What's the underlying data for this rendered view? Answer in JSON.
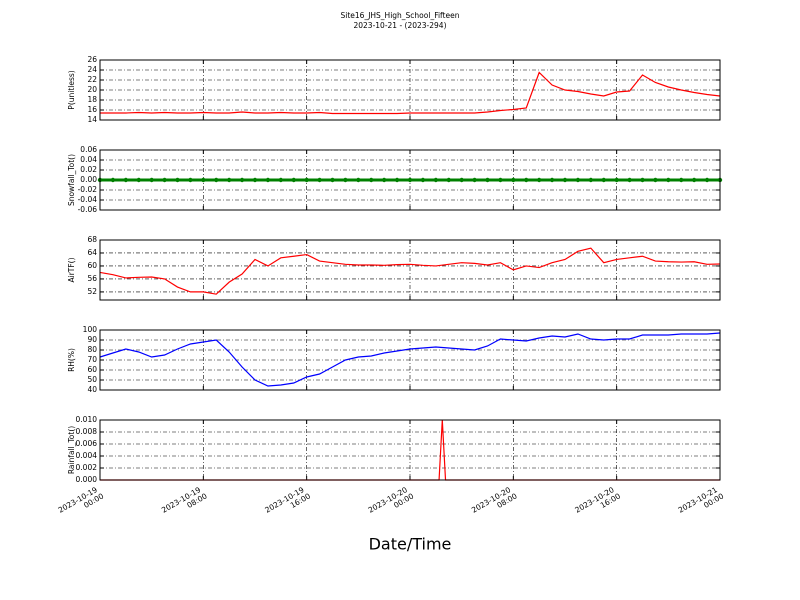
{
  "title": "Site16_JHS_High_School_Fifteen",
  "subtitle": "2023-10-21 - (2023-294)",
  "xlabel": "Date/Time",
  "chart_data": [
    {
      "type": "line",
      "ylabel": "P(unitless)",
      "color": "#ff0000",
      "grid": true,
      "xlim": [
        "2023-10-19 00:00",
        "2023-10-21 00:00"
      ],
      "xticks": [
        "2023-10-19 00:00",
        "2023-10-19 08:00",
        "2023-10-19 16:00",
        "2023-10-20 00:00",
        "2023-10-20 08:00",
        "2023-10-20 16:00",
        "2023-10-21 00:00"
      ],
      "ylim": [
        14,
        26
      ],
      "yticks": [
        14,
        16,
        18,
        20,
        22,
        24,
        26
      ],
      "x": [
        "2023-10-19 00:00",
        "2023-10-19 01:00",
        "2023-10-19 02:00",
        "2023-10-19 03:00",
        "2023-10-19 04:00",
        "2023-10-19 05:00",
        "2023-10-19 06:00",
        "2023-10-19 07:00",
        "2023-10-19 08:00",
        "2023-10-19 09:00",
        "2023-10-19 10:00",
        "2023-10-19 11:00",
        "2023-10-19 12:00",
        "2023-10-19 13:00",
        "2023-10-19 14:00",
        "2023-10-19 15:00",
        "2023-10-19 16:00",
        "2023-10-19 17:00",
        "2023-10-19 18:00",
        "2023-10-19 19:00",
        "2023-10-19 20:00",
        "2023-10-19 21:00",
        "2023-10-19 22:00",
        "2023-10-19 23:00",
        "2023-10-20 00:00",
        "2023-10-20 01:00",
        "2023-10-20 02:00",
        "2023-10-20 03:00",
        "2023-10-20 04:00",
        "2023-10-20 05:00",
        "2023-10-20 06:00",
        "2023-10-20 07:00",
        "2023-10-20 08:00",
        "2023-10-20 09:00",
        "2023-10-20 10:00",
        "2023-10-20 11:00",
        "2023-10-20 12:00",
        "2023-10-20 13:00",
        "2023-10-20 14:00",
        "2023-10-20 15:00",
        "2023-10-20 16:00",
        "2023-10-20 17:00",
        "2023-10-20 18:00",
        "2023-10-20 19:00",
        "2023-10-20 20:00",
        "2023-10-20 21:00",
        "2023-10-20 22:00",
        "2023-10-20 23:00",
        "2023-10-21 00:00"
      ],
      "values": [
        15.4,
        15.4,
        15.4,
        15.5,
        15.4,
        15.5,
        15.4,
        15.4,
        15.5,
        15.4,
        15.4,
        15.6,
        15.4,
        15.4,
        15.5,
        15.4,
        15.4,
        15.5,
        15.3,
        15.3,
        15.3,
        15.3,
        15.3,
        15.3,
        15.4,
        15.4,
        15.4,
        15.4,
        15.4,
        15.4,
        15.6,
        15.9,
        16.1,
        16.4,
        23.5,
        21,
        20,
        19.7,
        19.2,
        18.8,
        19.6,
        19.8,
        23,
        21.5,
        20.6,
        20,
        19.5,
        19.1,
        18.8
      ]
    },
    {
      "type": "line",
      "ylabel": "Snowfall_Tot()",
      "color": "#008000",
      "grid": true,
      "marker": "o",
      "xlim": [
        "2023-10-19 00:00",
        "2023-10-21 00:00"
      ],
      "xticks": [
        "2023-10-19 00:00",
        "2023-10-19 08:00",
        "2023-10-19 16:00",
        "2023-10-20 00:00",
        "2023-10-20 08:00",
        "2023-10-20 16:00",
        "2023-10-21 00:00"
      ],
      "ylim": [
        -0.06,
        0.06
      ],
      "yticks": [
        -0.06,
        -0.04,
        -0.02,
        {
          "value": 0,
          "label": "0.00"
        },
        0.02,
        0.04,
        0.06
      ],
      "x": [
        "2023-10-19 00:00",
        "2023-10-19 01:00",
        "2023-10-19 02:00",
        "2023-10-19 03:00",
        "2023-10-19 04:00",
        "2023-10-19 05:00",
        "2023-10-19 06:00",
        "2023-10-19 07:00",
        "2023-10-19 08:00",
        "2023-10-19 09:00",
        "2023-10-19 10:00",
        "2023-10-19 11:00",
        "2023-10-19 12:00",
        "2023-10-19 13:00",
        "2023-10-19 14:00",
        "2023-10-19 15:00",
        "2023-10-19 16:00",
        "2023-10-19 17:00",
        "2023-10-19 18:00",
        "2023-10-19 19:00",
        "2023-10-19 20:00",
        "2023-10-19 21:00",
        "2023-10-19 22:00",
        "2023-10-19 23:00",
        "2023-10-20 00:00",
        "2023-10-20 01:00",
        "2023-10-20 02:00",
        "2023-10-20 03:00",
        "2023-10-20 04:00",
        "2023-10-20 05:00",
        "2023-10-20 06:00",
        "2023-10-20 07:00",
        "2023-10-20 08:00",
        "2023-10-20 09:00",
        "2023-10-20 10:00",
        "2023-10-20 11:00",
        "2023-10-20 12:00",
        "2023-10-20 13:00",
        "2023-10-20 14:00",
        "2023-10-20 15:00",
        "2023-10-20 16:00",
        "2023-10-20 17:00",
        "2023-10-20 18:00",
        "2023-10-20 19:00",
        "2023-10-20 20:00",
        "2023-10-20 21:00",
        "2023-10-20 22:00",
        "2023-10-20 23:00",
        "2023-10-21 00:00"
      ],
      "values": [
        0,
        0,
        0,
        0,
        0,
        0,
        0,
        0,
        0,
        0,
        0,
        0,
        0,
        0,
        0,
        0,
        0,
        0,
        0,
        0,
        0,
        0,
        0,
        0,
        0,
        0,
        0,
        0,
        0,
        0,
        0,
        0,
        0,
        0,
        0,
        0,
        0,
        0,
        0,
        0,
        0,
        0,
        0,
        0,
        0,
        0,
        0,
        0,
        0
      ]
    },
    {
      "type": "line",
      "ylabel": "AirTF()",
      "color": "#ff0000",
      "grid": true,
      "xlim": [
        "2023-10-19 00:00",
        "2023-10-21 00:00"
      ],
      "xticks": [
        "2023-10-19 00:00",
        "2023-10-19 08:00",
        "2023-10-19 16:00",
        "2023-10-20 00:00",
        "2023-10-20 08:00",
        "2023-10-20 16:00",
        "2023-10-21 00:00"
      ],
      "ylim": [
        49.5,
        68
      ],
      "yticks": [
        52,
        56,
        60,
        64,
        68
      ],
      "x": [
        "2023-10-19 00:00",
        "2023-10-19 01:00",
        "2023-10-19 02:00",
        "2023-10-19 03:00",
        "2023-10-19 04:00",
        "2023-10-19 05:00",
        "2023-10-19 06:00",
        "2023-10-19 07:00",
        "2023-10-19 08:00",
        "2023-10-19 09:00",
        "2023-10-19 10:00",
        "2023-10-19 11:00",
        "2023-10-19 12:00",
        "2023-10-19 13:00",
        "2023-10-19 14:00",
        "2023-10-19 15:00",
        "2023-10-19 16:00",
        "2023-10-19 17:00",
        "2023-10-19 18:00",
        "2023-10-19 19:00",
        "2023-10-19 20:00",
        "2023-10-19 21:00",
        "2023-10-19 22:00",
        "2023-10-19 23:00",
        "2023-10-20 00:00",
        "2023-10-20 01:00",
        "2023-10-20 02:00",
        "2023-10-20 03:00",
        "2023-10-20 04:00",
        "2023-10-20 05:00",
        "2023-10-20 06:00",
        "2023-10-20 07:00",
        "2023-10-20 08:00",
        "2023-10-20 09:00",
        "2023-10-20 10:00",
        "2023-10-20 11:00",
        "2023-10-20 12:00",
        "2023-10-20 13:00",
        "2023-10-20 14:00",
        "2023-10-20 15:00",
        "2023-10-20 16:00",
        "2023-10-20 17:00",
        "2023-10-20 18:00",
        "2023-10-20 19:00",
        "2023-10-20 20:00",
        "2023-10-20 21:00",
        "2023-10-20 22:00",
        "2023-10-20 23:00",
        "2023-10-21 00:00"
      ],
      "values": [
        58,
        57.3,
        56.3,
        56.5,
        56.6,
        56,
        53.5,
        52,
        52,
        51.3,
        55,
        57.5,
        62,
        60,
        62.5,
        63,
        63.5,
        61.5,
        61,
        60.5,
        60.3,
        60.3,
        60.2,
        60.4,
        60.5,
        60.2,
        60,
        60.5,
        61,
        60.8,
        60.3,
        61,
        58.8,
        60,
        59.5,
        61,
        62,
        64.5,
        65.5,
        61,
        62,
        62.5,
        63,
        61.5,
        61.3,
        61.2,
        61.3,
        60.5,
        60.6
      ]
    },
    {
      "type": "line",
      "ylabel": "RH(%)",
      "color": "#0000ff",
      "grid": true,
      "xlim": [
        "2023-10-19 00:00",
        "2023-10-21 00:00"
      ],
      "xticks": [
        "2023-10-19 00:00",
        "2023-10-19 08:00",
        "2023-10-19 16:00",
        "2023-10-20 00:00",
        "2023-10-20 08:00",
        "2023-10-20 16:00",
        "2023-10-21 00:00"
      ],
      "ylim": [
        40,
        100
      ],
      "yticks": [
        40,
        50,
        60,
        70,
        80,
        90,
        100
      ],
      "x": [
        "2023-10-19 00:00",
        "2023-10-19 01:00",
        "2023-10-19 02:00",
        "2023-10-19 03:00",
        "2023-10-19 04:00",
        "2023-10-19 05:00",
        "2023-10-19 06:00",
        "2023-10-19 07:00",
        "2023-10-19 08:00",
        "2023-10-19 09:00",
        "2023-10-19 10:00",
        "2023-10-19 11:00",
        "2023-10-19 12:00",
        "2023-10-19 13:00",
        "2023-10-19 14:00",
        "2023-10-19 15:00",
        "2023-10-19 16:00",
        "2023-10-19 17:00",
        "2023-10-19 18:00",
        "2023-10-19 19:00",
        "2023-10-19 20:00",
        "2023-10-19 21:00",
        "2023-10-19 22:00",
        "2023-10-19 23:00",
        "2023-10-20 00:00",
        "2023-10-20 01:00",
        "2023-10-20 02:00",
        "2023-10-20 03:00",
        "2023-10-20 04:00",
        "2023-10-20 05:00",
        "2023-10-20 06:00",
        "2023-10-20 07:00",
        "2023-10-20 08:00",
        "2023-10-20 09:00",
        "2023-10-20 10:00",
        "2023-10-20 11:00",
        "2023-10-20 12:00",
        "2023-10-20 13:00",
        "2023-10-20 14:00",
        "2023-10-20 15:00",
        "2023-10-20 16:00",
        "2023-10-20 17:00",
        "2023-10-20 18:00",
        "2023-10-20 19:00",
        "2023-10-20 20:00",
        "2023-10-20 21:00",
        "2023-10-20 22:00",
        "2023-10-20 23:00",
        "2023-10-21 00:00"
      ],
      "values": [
        73,
        77,
        81,
        78,
        73,
        75,
        81,
        86,
        88,
        90,
        78,
        63,
        50,
        44,
        45,
        47,
        53,
        56,
        63,
        70,
        73,
        74,
        77,
        79,
        81,
        82,
        83,
        82,
        81,
        80,
        84,
        91,
        90,
        89,
        92,
        94,
        93,
        96,
        91,
        90,
        91,
        91,
        95,
        95,
        95,
        96,
        96,
        96,
        97
      ]
    },
    {
      "type": "line",
      "ylabel": "Rainfall_Tot()",
      "color": "#ff0000",
      "grid": true,
      "xlim": [
        "2023-10-19 00:00",
        "2023-10-21 00:00"
      ],
      "xticks": [
        "2023-10-19 00:00",
        "2023-10-19 08:00",
        "2023-10-19 16:00",
        "2023-10-20 00:00",
        "2023-10-20 08:00",
        "2023-10-20 16:00",
        "2023-10-21 00:00"
      ],
      "ylim": [
        0,
        0.01
      ],
      "yticks": [
        {
          "value": 0,
          "label": "0.000"
        },
        {
          "value": 0.002,
          "label": "0.002"
        },
        {
          "value": 0.004,
          "label": "0.004"
        },
        {
          "value": 0.006,
          "label": "0.006"
        },
        {
          "value": 0.008,
          "label": "0.008"
        },
        {
          "value": 0.01,
          "label": "0.010"
        }
      ],
      "x": [
        "2023-10-19 00:00",
        "2023-10-20 02:15",
        "2023-10-20 02:30",
        "2023-10-20 02:45",
        "2023-10-21 00:00"
      ],
      "values": [
        0,
        0,
        0.01,
        0,
        0
      ]
    }
  ]
}
